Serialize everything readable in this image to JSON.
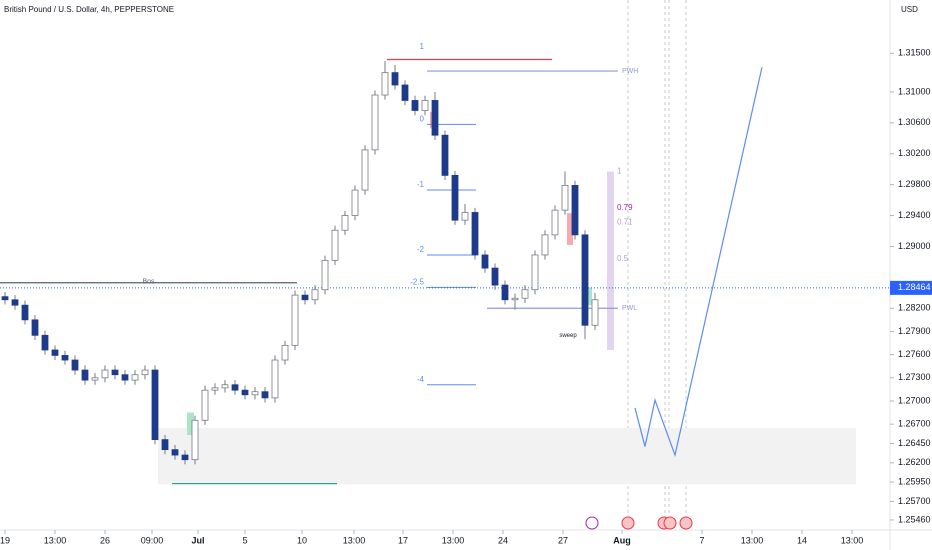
{
  "chart_data": {
    "type": "candlestick",
    "title": "British Pound / U.S. Dollar, 4h, PEPPERSTONE",
    "currency": "USD",
    "up_color": "#ffffff",
    "down_color": "#1e3a8a",
    "wick_color": "#787b86",
    "xlim": [
      0,
      178
    ],
    "ylim": [
      1.2533,
      1.3219
    ],
    "xticks": [
      {
        "value": 1,
        "label": "19"
      },
      {
        "value": 11,
        "label": "13:00"
      },
      {
        "value": 21,
        "label": "26"
      },
      {
        "value": 30.4,
        "label": "09:00"
      },
      {
        "value": 39.6,
        "label": "Jul"
      },
      {
        "value": 49,
        "label": "5"
      },
      {
        "value": 60.4,
        "label": "10"
      },
      {
        "value": 70.8,
        "label": "13:00"
      },
      {
        "value": 80.6,
        "label": "17"
      },
      {
        "value": 90.6,
        "label": "13:00"
      },
      {
        "value": 100.6,
        "label": "24"
      },
      {
        "value": 112.6,
        "label": "27"
      },
      {
        "value": 124.4,
        "label": "Aug"
      },
      {
        "value": 140.4,
        "label": "7"
      },
      {
        "value": 150.4,
        "label": "13:00"
      },
      {
        "value": 160.4,
        "label": "14"
      },
      {
        "value": 170.4,
        "label": "13:00"
      }
    ],
    "yticks": [
      {
        "value": 1.315,
        "label": "1.31500"
      },
      {
        "value": 1.31,
        "label": "1.31000"
      },
      {
        "value": 1.306,
        "label": "1.30600"
      },
      {
        "value": 1.302,
        "label": "1.30200"
      },
      {
        "value": 1.298,
        "label": "1.29800"
      },
      {
        "value": 1.294,
        "label": "1.29400"
      },
      {
        "value": 1.29,
        "label": "1.29000"
      },
      {
        "value": 1.282,
        "label": "1.28200"
      },
      {
        "value": 1.279,
        "label": "1.27900"
      },
      {
        "value": 1.276,
        "label": "1.27600"
      },
      {
        "value": 1.273,
        "label": "1.27300"
      },
      {
        "value": 1.27,
        "label": "1.27000"
      },
      {
        "value": 1.267,
        "label": "1.26700"
      },
      {
        "value": 1.2645,
        "label": "1.26450"
      },
      {
        "value": 1.262,
        "label": "1.26200"
      },
      {
        "value": 1.2595,
        "label": "1.25950"
      },
      {
        "value": 1.257,
        "label": "1.25700"
      },
      {
        "value": 1.2546,
        "label": "1.25460"
      }
    ],
    "last_price": {
      "value": 1.28464,
      "label": "1.28464"
    },
    "x": [
      1,
      3,
      5,
      7,
      9,
      11,
      13,
      15,
      17,
      19,
      21,
      23,
      25,
      27,
      29,
      31,
      33,
      35,
      37,
      39,
      41,
      43,
      45,
      47,
      49,
      51,
      53,
      55,
      57,
      59,
      61,
      63,
      65,
      67,
      69,
      71,
      73,
      75,
      77,
      79,
      81,
      83,
      85,
      87,
      89,
      91,
      93,
      95,
      97,
      99,
      101,
      103,
      105,
      107,
      109,
      111,
      113,
      115,
      117,
      119
    ],
    "candles": [
      [
        1.2835,
        1.2841,
        1.2825,
        1.2831
      ],
      [
        1.2831,
        1.2837,
        1.2818,
        1.2824
      ],
      [
        1.2824,
        1.283,
        1.2799,
        1.2805
      ],
      [
        1.2805,
        1.2811,
        1.2779,
        1.2785
      ],
      [
        1.2785,
        1.2791,
        1.276,
        1.2766
      ],
      [
        1.2766,
        1.2772,
        1.2753,
        1.2759
      ],
      [
        1.2759,
        1.2765,
        1.2747,
        1.2753
      ],
      [
        1.2753,
        1.2759,
        1.2734,
        1.274
      ],
      [
        1.274,
        1.2746,
        1.2721,
        1.2727
      ],
      [
        1.2727,
        1.2736,
        1.2721,
        1.273
      ],
      [
        1.273,
        1.2746,
        1.2724,
        1.274
      ],
      [
        1.274,
        1.2746,
        1.2728,
        1.2734
      ],
      [
        1.2734,
        1.274,
        1.2721,
        1.2727
      ],
      [
        1.2727,
        1.274,
        1.2721,
        1.2734
      ],
      [
        1.2734,
        1.2746,
        1.2728,
        1.274
      ],
      [
        1.274,
        1.2746,
        1.2644,
        1.265
      ],
      [
        1.265,
        1.2656,
        1.2631,
        1.2637
      ],
      [
        1.2637,
        1.2643,
        1.2624,
        1.263
      ],
      [
        1.263,
        1.2636,
        1.2618,
        1.2624
      ],
      [
        1.2624,
        1.2681,
        1.2618,
        1.2675
      ],
      [
        1.2675,
        1.272,
        1.2669,
        1.2714
      ],
      [
        1.2714,
        1.2723,
        1.2708,
        1.2717
      ],
      [
        1.2717,
        1.2727,
        1.2711,
        1.2721
      ],
      [
        1.2721,
        1.2727,
        1.2708,
        1.2714
      ],
      [
        1.2714,
        1.272,
        1.2702,
        1.2708
      ],
      [
        1.2708,
        1.2718,
        1.2702,
        1.2712
      ],
      [
        1.2712,
        1.2718,
        1.2698,
        1.2704
      ],
      [
        1.2704,
        1.2759,
        1.2698,
        1.2753
      ],
      [
        1.2753,
        1.2778,
        1.2747,
        1.2772
      ],
      [
        1.2772,
        1.2843,
        1.2766,
        1.2837
      ],
      [
        1.2837,
        1.2843,
        1.2825,
        1.2831
      ],
      [
        1.2831,
        1.285,
        1.2825,
        1.2844
      ],
      [
        1.2844,
        1.2888,
        1.2838,
        1.2882
      ],
      [
        1.2882,
        1.2927,
        1.2876,
        1.2921
      ],
      [
        1.2921,
        1.2946,
        1.2915,
        1.294
      ],
      [
        1.294,
        1.2979,
        1.2934,
        1.2973
      ],
      [
        1.2973,
        1.3031,
        1.2967,
        1.3025
      ],
      [
        1.3025,
        1.3102,
        1.3019,
        1.3096
      ],
      [
        1.3096,
        1.314,
        1.309,
        1.3125
      ],
      [
        1.3125,
        1.3135,
        1.3103,
        1.3109
      ],
      [
        1.3109,
        1.3115,
        1.3083,
        1.3089
      ],
      [
        1.3089,
        1.3095,
        1.307,
        1.3076
      ],
      [
        1.3076,
        1.3095,
        1.307,
        1.3089
      ],
      [
        1.3089,
        1.31,
        1.3038,
        1.3044
      ],
      [
        1.3044,
        1.305,
        1.2986,
        1.2992
      ],
      [
        1.2992,
        1.2998,
        1.2928,
        1.2934
      ],
      [
        1.2934,
        1.2955,
        1.2928,
        1.2944
      ],
      [
        1.2944,
        1.295,
        1.2883,
        1.2889
      ],
      [
        1.2889,
        1.2895,
        1.2866,
        1.2872
      ],
      [
        1.2872,
        1.2878,
        1.2844,
        1.285
      ],
      [
        1.285,
        1.2856,
        1.2825,
        1.2831
      ],
      [
        1.2831,
        1.2839,
        1.2818,
        1.2833
      ],
      [
        1.2833,
        1.285,
        1.2827,
        1.2844
      ],
      [
        1.2844,
        1.2895,
        1.2838,
        1.2889
      ],
      [
        1.2889,
        1.2921,
        1.2883,
        1.2915
      ],
      [
        1.2915,
        1.2953,
        1.2909,
        1.2947
      ],
      [
        1.2947,
        1.2997,
        1.2941,
        1.2979
      ],
      [
        1.2979,
        1.2985,
        1.2909,
        1.2915
      ],
      [
        1.2915,
        1.2921,
        1.278,
        1.2798
      ],
      [
        1.2798,
        1.284,
        1.2792,
        1.2831
      ]
    ],
    "zones": [
      {
        "x": [
          31.6,
          171.2
        ],
        "values": [
          1.2665,
          1.2592
        ],
        "color": "#f2f2f2"
      },
      {
        "x": [
          86,
          87.4
        ],
        "values": [
          1.3074,
          1.3053
        ],
        "color": "#f7a9ae"
      },
      {
        "x": [
          113.4,
          114.6
        ],
        "values": [
          1.2943,
          1.2902
        ],
        "color": "#f7a9ae"
      },
      {
        "x": [
          37.4,
          38.8
        ],
        "values": [
          1.2685,
          1.2656
        ],
        "color": "#a8e6c7"
      },
      {
        "x": [
          117.4,
          118.4
        ],
        "values": [
          1.2847,
          1.2824
        ],
        "color": "#a8e6c7"
      },
      {
        "x": [
          121.4,
          122.8
        ],
        "values": [
          1.2997,
          1.2766
        ],
        "color": "#e3d5ef"
      }
    ],
    "lines": [
      {
        "label": "Bos",
        "value": 1.2853,
        "x": [
          0,
          59.4
        ],
        "color": "#5d606b"
      },
      {
        "label": "PWH",
        "value": 1.3127,
        "x": [
          85.4,
          123.6
        ],
        "color": "#9598d6"
      },
      {
        "label": "PWL",
        "value": 1.282,
        "x": [
          97.4,
          123.6
        ],
        "color": "#9598d6"
      },
      {
        "value": 1.3142,
        "x": [
          77.4,
          110.4
        ],
        "color": "#f23645"
      },
      {
        "value": 1.2593,
        "x": [
          34.4,
          67.4
        ],
        "color": "#26a69a"
      }
    ],
    "fib": [
      {
        "label": "1",
        "value": 1.3152,
        "x": [
          85.4,
          85.4
        ]
      },
      {
        "label": "0",
        "value": 1.3058,
        "x": [
          85.4,
          95.2
        ]
      },
      {
        "label": "-1",
        "value": 1.2973,
        "x": [
          85.4,
          95.2
        ]
      },
      {
        "label": "-2",
        "value": 1.2889,
        "x": [
          85.4,
          95.2
        ]
      },
      {
        "label": "-2.5",
        "value": 1.2847,
        "x": [
          85.4,
          95.2
        ]
      },
      {
        "label": "-4",
        "value": 1.2721,
        "x": [
          85.4,
          95.2
        ]
      }
    ],
    "fib_right": [
      {
        "label": "1",
        "value": 1.2997
      },
      {
        "label": "0.79",
        "value": 1.295
      },
      {
        "label": "0.71",
        "value": 1.2931
      },
      {
        "label": "0.5",
        "value": 1.2884
      }
    ],
    "annotation": {
      "label": "sweep",
      "x": 113.6,
      "value": 1.2785
    },
    "projection": {
      "color": "#5b8def",
      "x": [
        127,
        129,
        131,
        135,
        152.4
      ],
      "values": [
        1.2691,
        1.2641,
        1.2701,
        1.263,
        1.3132
      ]
    }
  }
}
